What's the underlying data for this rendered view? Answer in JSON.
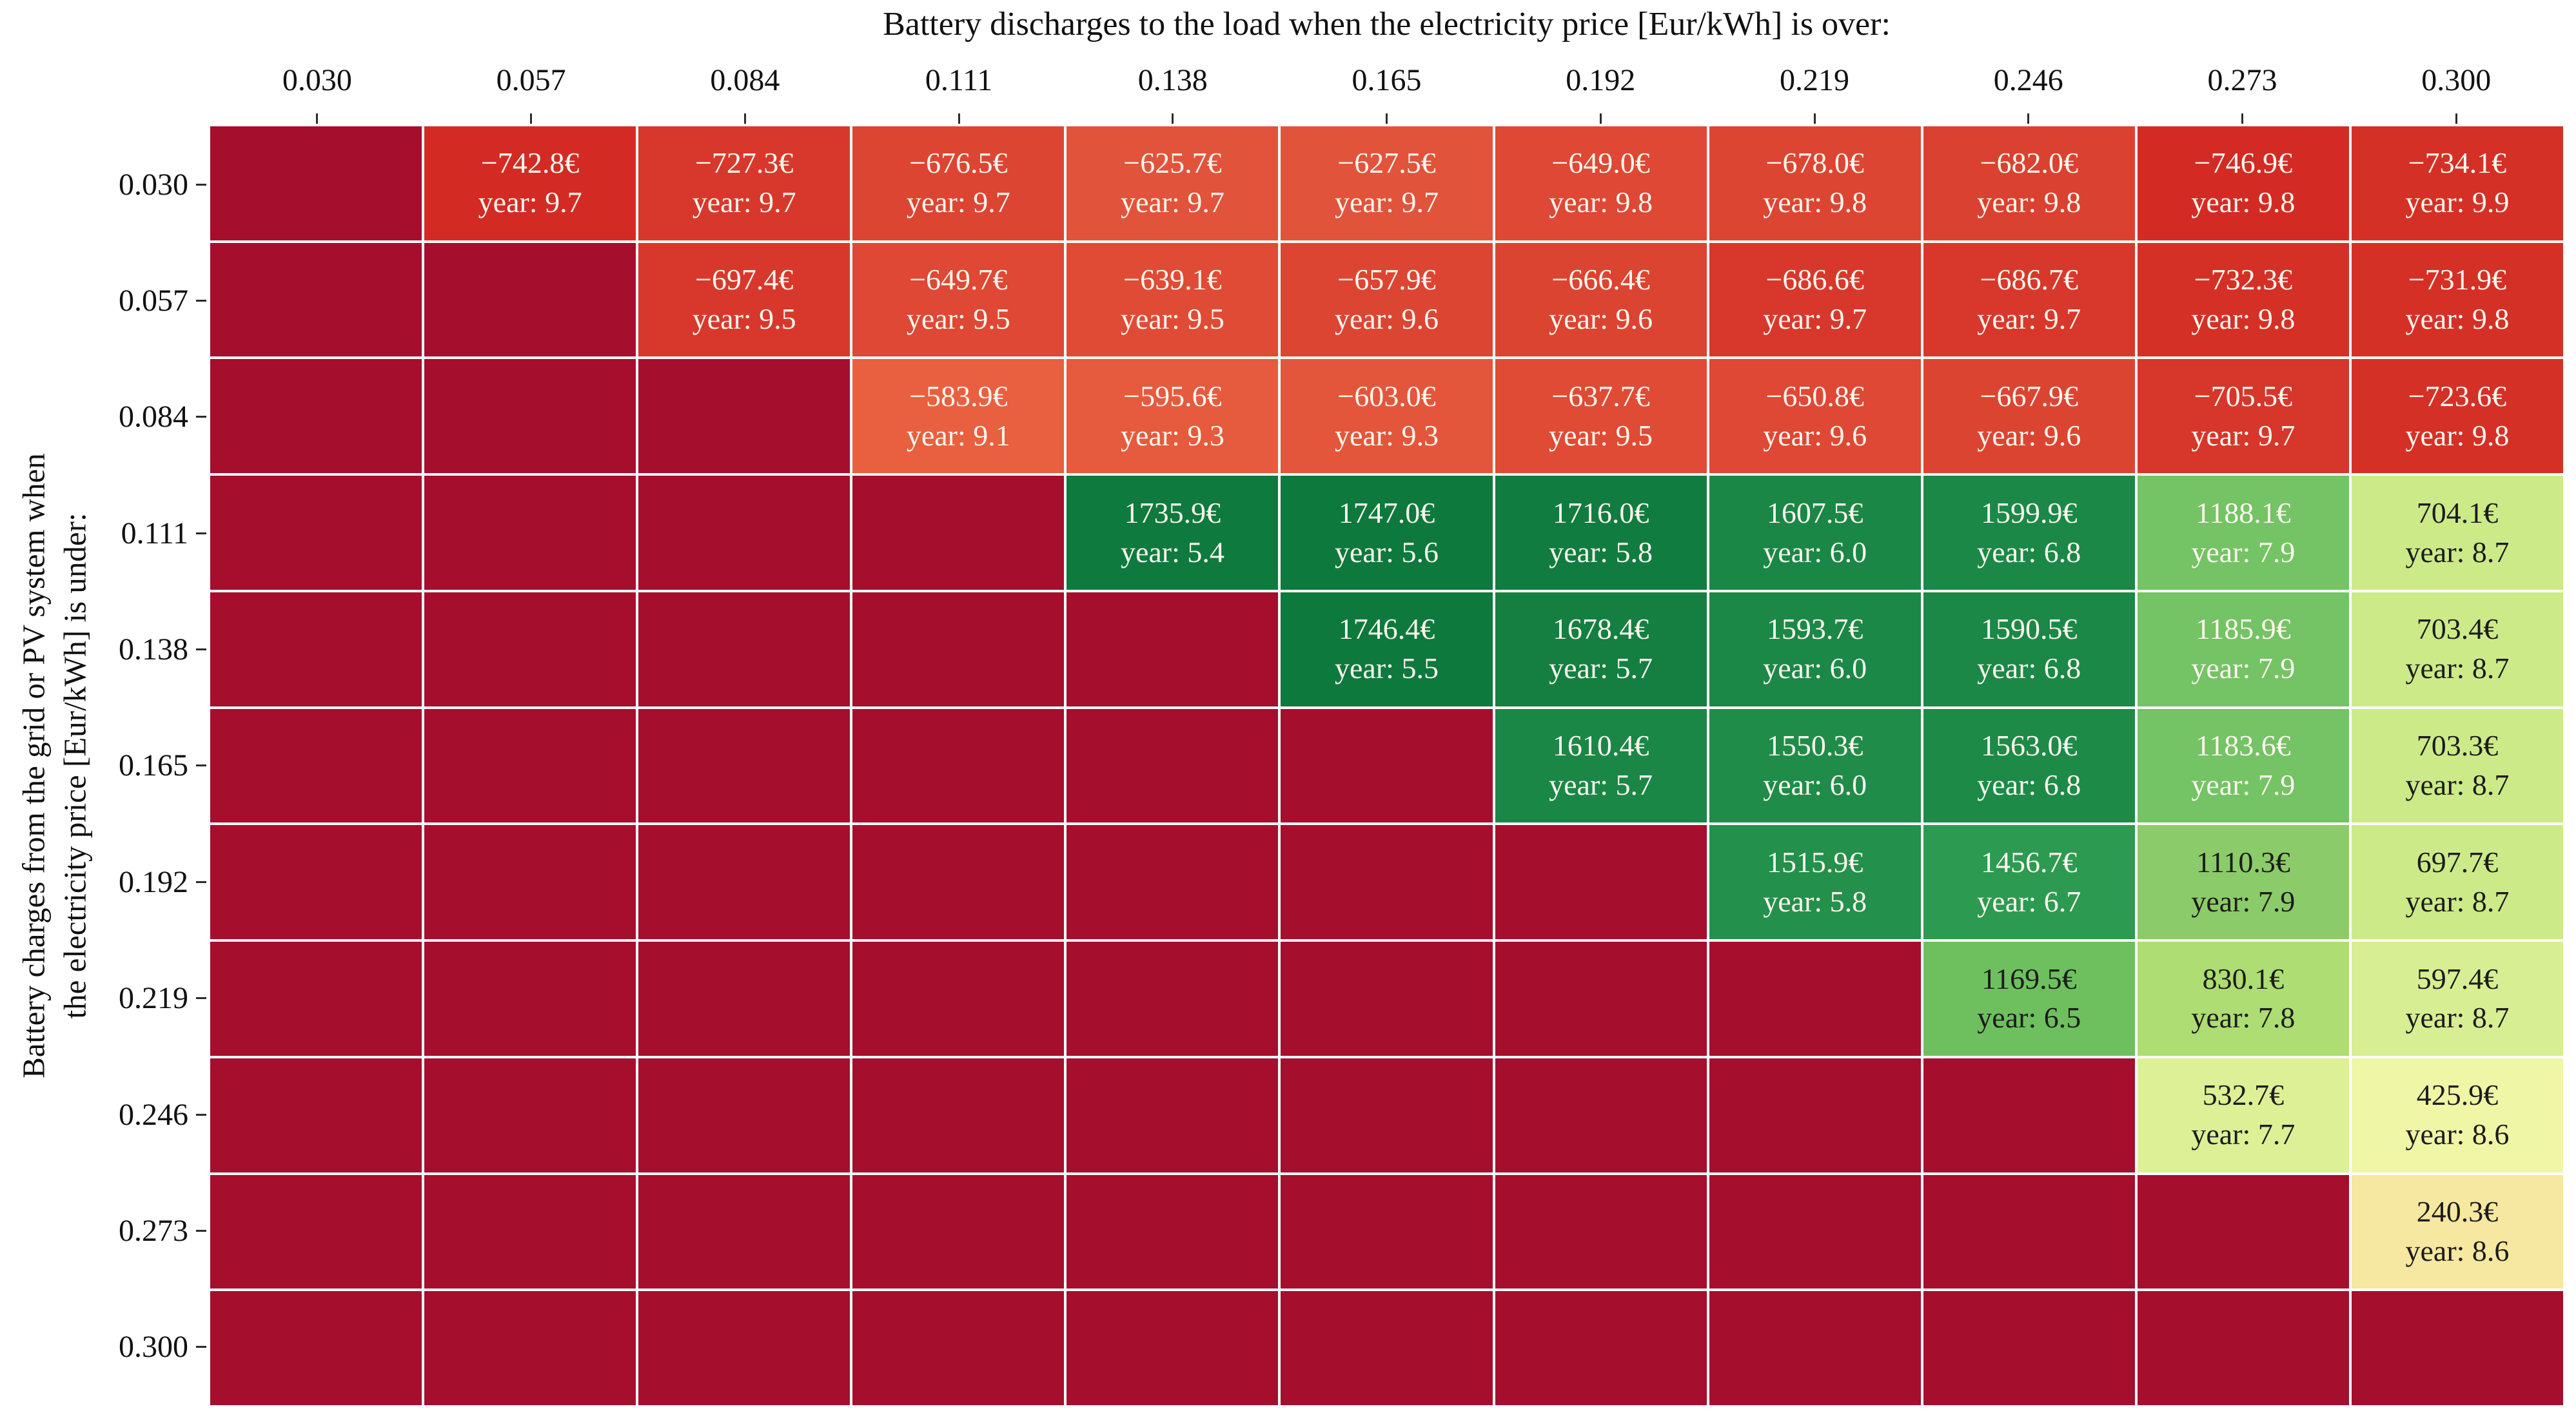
{
  "title": "Battery discharges to the load when the electricity price [Eur/kWh] is over:",
  "ylabel": {
    "line1": "Battery charges from the grid or PV system when",
    "line2": "the electricity price [Eur/kWh] is under:"
  },
  "chart_data": {
    "type": "heatmap",
    "x_axis_title": "Battery discharges to the load when the electricity price [Eur/kWh] is over:",
    "y_axis_title": "Battery charges from the grid or PV system when the electricity price [Eur/kWh] is under:",
    "values_unit": "EUR",
    "secondary_value_label": "year",
    "x_ticks": [
      "0.030",
      "0.057",
      "0.084",
      "0.111",
      "0.138",
      "0.165",
      "0.192",
      "0.219",
      "0.246",
      "0.273",
      "0.300"
    ],
    "y_ticks": [
      "0.030",
      "0.057",
      "0.084",
      "0.111",
      "0.138",
      "0.165",
      "0.192",
      "0.219",
      "0.246",
      "0.273",
      "0.300"
    ],
    "colors": {
      "empty": "#a60e2e",
      "grid_gap": "#ffffff",
      "text_light": "#fbf6ee",
      "text_dark": "#1c1c1c"
    },
    "cells": [
      [
        null,
        {
          "v": "−742.8€",
          "yr": "year: 9.7",
          "bg": "#d32b24"
        },
        {
          "v": "−727.3€",
          "yr": "year: 9.7",
          "bg": "#d8382b"
        },
        {
          "v": "−676.5€",
          "yr": "year: 9.7",
          "bg": "#dd4533"
        },
        {
          "v": "−625.7€",
          "yr": "year: 9.7",
          "bg": "#e2533b"
        },
        {
          "v": "−627.5€",
          "yr": "year: 9.7",
          "bg": "#e2533b"
        },
        {
          "v": "−649.0€",
          "yr": "year: 9.8",
          "bg": "#de4834"
        },
        {
          "v": "−678.0€",
          "yr": "year: 9.8",
          "bg": "#dd4533"
        },
        {
          "v": "−682.0€",
          "yr": "year: 9.8",
          "bg": "#db4130"
        },
        {
          "v": "−746.9€",
          "yr": "year: 9.8",
          "bg": "#d32b24"
        },
        {
          "v": "−734.1€",
          "yr": "year: 9.9",
          "bg": "#d53026"
        }
      ],
      [
        null,
        null,
        {
          "v": "−697.4€",
          "yr": "year: 9.5",
          "bg": "#d8382b"
        },
        {
          "v": "−649.7€",
          "yr": "year: 9.5",
          "bg": "#de4834"
        },
        {
          "v": "−639.1€",
          "yr": "year: 9.5",
          "bg": "#e04b36"
        },
        {
          "v": "−657.9€",
          "yr": "year: 9.6",
          "bg": "#dd4533"
        },
        {
          "v": "−666.4€",
          "yr": "year: 9.6",
          "bg": "#dc4432"
        },
        {
          "v": "−686.6€",
          "yr": "year: 9.7",
          "bg": "#d8382b"
        },
        {
          "v": "−686.7€",
          "yr": "year: 9.7",
          "bg": "#d8382b"
        },
        {
          "v": "−732.3€",
          "yr": "year: 9.8",
          "bg": "#d53026"
        },
        {
          "v": "−731.9€",
          "yr": "year: 9.8",
          "bg": "#d53026"
        }
      ],
      [
        null,
        null,
        null,
        {
          "v": "−583.9€",
          "yr": "year: 9.1",
          "bg": "#e8603f"
        },
        {
          "v": "−595.6€",
          "yr": "year: 9.3",
          "bg": "#e65a3d"
        },
        {
          "v": "−603.0€",
          "yr": "year: 9.3",
          "bg": "#e4563b"
        },
        {
          "v": "−637.7€",
          "yr": "year: 9.5",
          "bg": "#e04b36"
        },
        {
          "v": "−650.8€",
          "yr": "year: 9.6",
          "bg": "#de4834"
        },
        {
          "v": "−667.9€",
          "yr": "year: 9.6",
          "bg": "#dc4432"
        },
        {
          "v": "−705.5€",
          "yr": "year: 9.7",
          "bg": "#d7362a"
        },
        {
          "v": "−723.6€",
          "yr": "year: 9.8",
          "bg": "#d53026"
        }
      ],
      [
        null,
        null,
        null,
        null,
        {
          "v": "1735.9€",
          "yr": "year: 5.4",
          "bg": "#0f7a3e"
        },
        {
          "v": "1747.0€",
          "yr": "year: 5.6",
          "bg": "#0e793d"
        },
        {
          "v": "1716.0€",
          "yr": "year: 5.8",
          "bg": "#117c3f"
        },
        {
          "v": "1607.5€",
          "yr": "year: 6.0",
          "bg": "#1a8746"
        },
        {
          "v": "1599.9€",
          "yr": "year: 6.8",
          "bg": "#1b8847"
        },
        {
          "v": "1188.1€",
          "yr": "year: 7.9",
          "bg": "#74c364"
        },
        {
          "v": "704.1€",
          "yr": "year: 8.7",
          "bg": "#cdea88",
          "fg": "dark"
        }
      ],
      [
        null,
        null,
        null,
        null,
        null,
        {
          "v": "1746.4€",
          "yr": "year: 5.5",
          "bg": "#0e793d"
        },
        {
          "v": "1678.4€",
          "yr": "year: 5.7",
          "bg": "#147f41"
        },
        {
          "v": "1593.7€",
          "yr": "year: 6.0",
          "bg": "#1b8847"
        },
        {
          "v": "1590.5€",
          "yr": "year: 6.8",
          "bg": "#1b8847"
        },
        {
          "v": "1185.9€",
          "yr": "year: 7.9",
          "bg": "#74c364"
        },
        {
          "v": "703.4€",
          "yr": "year: 8.7",
          "bg": "#cdea88",
          "fg": "dark"
        }
      ],
      [
        null,
        null,
        null,
        null,
        null,
        null,
        {
          "v": "1610.4€",
          "yr": "year: 5.7",
          "bg": "#1a8746"
        },
        {
          "v": "1550.3€",
          "yr": "year: 6.0",
          "bg": "#1f8c49"
        },
        {
          "v": "1563.0€",
          "yr": "year: 6.8",
          "bg": "#1d8a48"
        },
        {
          "v": "1183.6€",
          "yr": "year: 7.9",
          "bg": "#74c364"
        },
        {
          "v": "703.3€",
          "yr": "year: 8.7",
          "bg": "#cdea88",
          "fg": "dark"
        }
      ],
      [
        null,
        null,
        null,
        null,
        null,
        null,
        null,
        {
          "v": "1515.9€",
          "yr": "year: 5.8",
          "bg": "#23904b"
        },
        {
          "v": "1456.7€",
          "yr": "year: 6.7",
          "bg": "#2d9a51"
        },
        {
          "v": "1110.3€",
          "yr": "year: 7.9",
          "bg": "#8ccb69",
          "fg": "dark"
        },
        {
          "v": "697.7€",
          "yr": "year: 8.7",
          "bg": "#cdea88",
          "fg": "dark"
        }
      ],
      [
        null,
        null,
        null,
        null,
        null,
        null,
        null,
        null,
        {
          "v": "1169.5€",
          "yr": "year: 6.5",
          "bg": "#6ec05f",
          "fg": "dark"
        },
        {
          "v": "830.1€",
          "yr": "year: 7.8",
          "bg": "#aedd73",
          "fg": "dark"
        },
        {
          "v": "597.4€",
          "yr": "year: 8.7",
          "bg": "#d8ee93",
          "fg": "dark"
        }
      ],
      [
        null,
        null,
        null,
        null,
        null,
        null,
        null,
        null,
        null,
        {
          "v": "532.7€",
          "yr": "year: 7.7",
          "bg": "#def096",
          "fg": "dark"
        },
        {
          "v": "425.9€",
          "yr": "year: 8.6",
          "bg": "#eff6a6",
          "fg": "dark"
        }
      ],
      [
        null,
        null,
        null,
        null,
        null,
        null,
        null,
        null,
        null,
        null,
        {
          "v": "240.3€",
          "yr": "year: 8.6",
          "bg": "#f6e7a1",
          "fg": "dark"
        }
      ],
      [
        null,
        null,
        null,
        null,
        null,
        null,
        null,
        null,
        null,
        null,
        null
      ]
    ]
  }
}
